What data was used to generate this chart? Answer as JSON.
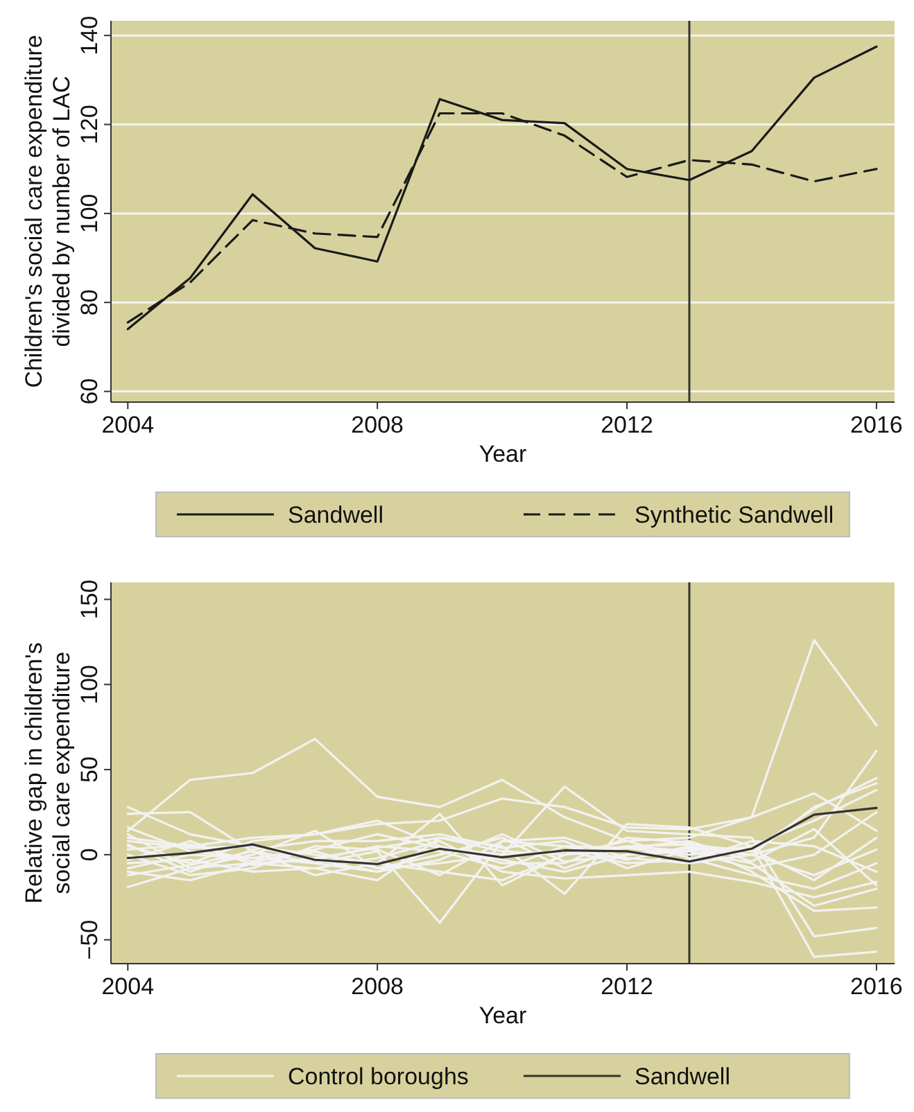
{
  "chart_data": [
    {
      "type": "line",
      "xlabel": "Year",
      "ylabel": "Children's social care expenditure\ndivided by number of LAC",
      "x": [
        2004,
        2005,
        2006,
        2007,
        2008,
        2009,
        2010,
        2011,
        2012,
        2013,
        2014,
        2015,
        2016
      ],
      "xlim": [
        2003.73,
        2016.29
      ],
      "xticks": [
        2004,
        2008,
        2012,
        2016
      ],
      "ylim": [
        57.6,
        143.3
      ],
      "yticks": [
        60,
        80,
        100,
        120,
        140
      ],
      "grid": "y",
      "legend": "bottom",
      "ref_lines": [
        {
          "axis": "x",
          "value": 2013,
          "color": "#333333"
        }
      ],
      "series": [
        {
          "name": "Sandwell",
          "color": "#1a1a1a",
          "line_style": "solid",
          "values": [
            74,
            85.5,
            104.3,
            92.2,
            89.2,
            125.7,
            121,
            120.3,
            110,
            107.5,
            114,
            130.5,
            137.5
          ]
        },
        {
          "name": "Synthetic Sandwell",
          "color": "#1a1a1a",
          "line_style": "dashed",
          "values": [
            75.5,
            84.5,
            98.5,
            95.5,
            94.7,
            122.5,
            122.5,
            117.5,
            108.2,
            112,
            111,
            107.2,
            110
          ]
        }
      ]
    },
    {
      "type": "line",
      "xlabel": "Year",
      "ylabel": "Relative gap in children's\nsocial care expenditure",
      "x": [
        2004,
        2005,
        2006,
        2007,
        2008,
        2009,
        2010,
        2011,
        2012,
        2013,
        2014,
        2015,
        2016
      ],
      "xlim": [
        2003.73,
        2016.29
      ],
      "xticks": [
        2004,
        2008,
        2012,
        2016
      ],
      "ylim": [
        -64,
        160
      ],
      "yticks": [
        {
          "value": -50,
          "label": "−50"
        },
        0,
        50,
        100,
        150
      ],
      "grid": false,
      "legend": "bottom",
      "ref_lines": [
        {
          "axis": "x",
          "value": 2013,
          "color": "#333333"
        }
      ],
      "series": [
        {
          "name": "Control boroughs",
          "color": "#f2f2f2",
          "values": [
            14,
            44,
            48,
            68,
            34,
            28,
            44,
            22,
            8,
            10,
            22,
            126,
            76
          ]
        },
        {
          "color": "#f2f2f2",
          "values": [
            28,
            12,
            5,
            0,
            -5,
            24,
            -18,
            0,
            5,
            2,
            -5,
            -30,
            -20
          ]
        },
        {
          "color": "#f2f2f2",
          "values": [
            24,
            25,
            2,
            -5,
            2,
            -40,
            8,
            5,
            -3,
            5,
            0,
            10,
            61
          ]
        },
        {
          "color": "#f2f2f2",
          "values": [
            10,
            5,
            10,
            12,
            18,
            20,
            33,
            28,
            16,
            15,
            22,
            36,
            14
          ]
        },
        {
          "color": "#f2f2f2",
          "values": [
            -19,
            -8,
            -5,
            -3,
            -10,
            4,
            0,
            40,
            14,
            12,
            10,
            -48,
            -43
          ]
        },
        {
          "color": "#f2f2f2",
          "values": [
            -10,
            -15,
            -5,
            -8,
            -15,
            10,
            5,
            -23,
            18,
            16,
            5,
            -60,
            -57
          ]
        },
        {
          "color": "#f2f2f2",
          "values": [
            5,
            -5,
            8,
            12,
            20,
            5,
            -5,
            -5,
            10,
            7,
            -10,
            -33,
            -31
          ]
        },
        {
          "color": "#f2f2f2",
          "values": [
            12,
            -8,
            0,
            14,
            -8,
            0,
            10,
            -8,
            5,
            6,
            2,
            27,
            45
          ]
        },
        {
          "color": "#f2f2f2",
          "values": [
            0,
            -12,
            -8,
            5,
            3,
            -12,
            8,
            10,
            -2,
            -5,
            0,
            28,
            42
          ]
        },
        {
          "color": "#f2f2f2",
          "values": [
            -5,
            -3,
            -10,
            -8,
            -2,
            8,
            -10,
            -14,
            -12,
            -10,
            -16,
            -25,
            -16
          ]
        },
        {
          "color": "#f2f2f2",
          "values": [
            8,
            4,
            5,
            -3,
            5,
            2,
            -8,
            5,
            4,
            0,
            5,
            20,
            38
          ]
        },
        {
          "color": "#f2f2f2",
          "values": [
            -8,
            0,
            -2,
            3,
            12,
            4,
            -3,
            -10,
            0,
            2,
            -8,
            0,
            25
          ]
        },
        {
          "color": "#f2f2f2",
          "values": [
            3,
            6,
            -4,
            2,
            -8,
            -5,
            0,
            2,
            -5,
            -3,
            8,
            5,
            -10
          ]
        },
        {
          "color": "#f2f2f2",
          "values": [
            -12,
            -6,
            2,
            -12,
            -5,
            -10,
            -15,
            0,
            8,
            -2,
            -12,
            -20,
            -5
          ]
        },
        {
          "color": "#f2f2f2",
          "values": [
            6,
            -10,
            3,
            8,
            8,
            12,
            4,
            8,
            -8,
            3,
            0,
            -12,
            3
          ]
        },
        {
          "color": "#f2f2f2",
          "values": [
            -3,
            8,
            -6,
            -2,
            4,
            10,
            2,
            0,
            4,
            8,
            -4,
            15,
            -18
          ]
        },
        {
          "color": "#f2f2f2",
          "values": [
            16,
            2,
            -2,
            -5,
            -10,
            -3,
            12,
            -4,
            0,
            4,
            3,
            -15,
            10
          ]
        },
        {
          "name": "Sandwell",
          "color": "#333333",
          "values": [
            -2,
            1,
            6,
            -3,
            -5.5,
            3.5,
            -1.5,
            2.5,
            2,
            -4,
            3.5,
            23.5,
            27.5
          ]
        }
      ]
    }
  ]
}
